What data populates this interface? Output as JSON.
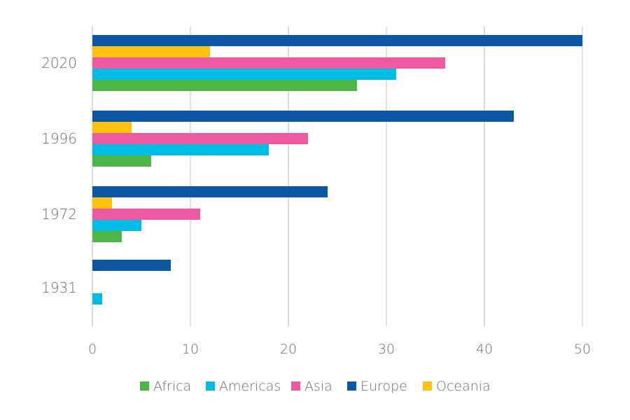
{
  "chart_data": {
    "type": "bar",
    "orientation": "horizontal",
    "categories": [
      "2020",
      "1996",
      "1972",
      "1931"
    ],
    "series": [
      {
        "name": "Africa",
        "color": "#4cb748",
        "values": [
          27,
          6,
          3,
          0
        ]
      },
      {
        "name": "Americas",
        "color": "#00bce4",
        "values": [
          31,
          18,
          5,
          1
        ]
      },
      {
        "name": "Asia",
        "color": "#ee5aa1",
        "values": [
          36,
          22,
          11,
          0
        ]
      },
      {
        "name": "Oceania",
        "color": "#ffc20e",
        "values": [
          12,
          4,
          2,
          0
        ]
      },
      {
        "name": "Europe",
        "color": "#0b57a4",
        "values": [
          50,
          43,
          24,
          8
        ]
      }
    ],
    "legend_order": [
      "Africa",
      "Americas",
      "Asia",
      "Europe",
      "Oceania"
    ],
    "xlim": [
      0,
      50
    ],
    "xticks": [
      "0",
      "10",
      "20",
      "30",
      "40",
      "50"
    ],
    "grid": "vertical",
    "legend_position": "bottom",
    "title": "",
    "xlabel": "",
    "ylabel": ""
  }
}
